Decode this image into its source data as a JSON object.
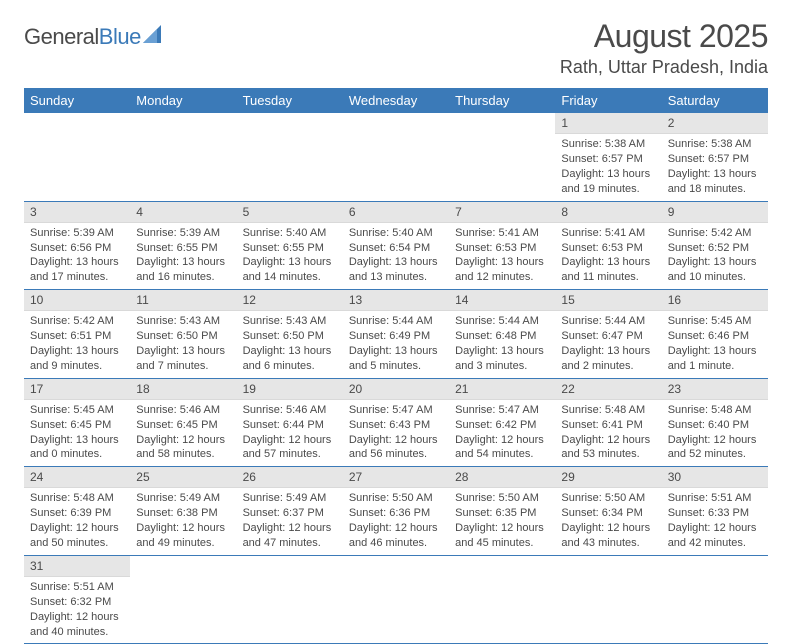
{
  "logo": {
    "text1": "General",
    "text2": "Blue"
  },
  "header": {
    "title": "August 2025",
    "subtitle": "Rath, Uttar Pradesh, India"
  },
  "colors": {
    "accent": "#3b7ab8",
    "dayheader_bg": "#e6e6e6",
    "text": "#4a4a4a",
    "white": "#ffffff"
  },
  "calendar": {
    "daynames": [
      "Sunday",
      "Monday",
      "Tuesday",
      "Wednesday",
      "Thursday",
      "Friday",
      "Saturday"
    ],
    "weeks": [
      [
        null,
        null,
        null,
        null,
        null,
        {
          "n": "1",
          "sunrise": "Sunrise: 5:38 AM",
          "sunset": "Sunset: 6:57 PM",
          "daylight": "Daylight: 13 hours and 19 minutes."
        },
        {
          "n": "2",
          "sunrise": "Sunrise: 5:38 AM",
          "sunset": "Sunset: 6:57 PM",
          "daylight": "Daylight: 13 hours and 18 minutes."
        }
      ],
      [
        {
          "n": "3",
          "sunrise": "Sunrise: 5:39 AM",
          "sunset": "Sunset: 6:56 PM",
          "daylight": "Daylight: 13 hours and 17 minutes."
        },
        {
          "n": "4",
          "sunrise": "Sunrise: 5:39 AM",
          "sunset": "Sunset: 6:55 PM",
          "daylight": "Daylight: 13 hours and 16 minutes."
        },
        {
          "n": "5",
          "sunrise": "Sunrise: 5:40 AM",
          "sunset": "Sunset: 6:55 PM",
          "daylight": "Daylight: 13 hours and 14 minutes."
        },
        {
          "n": "6",
          "sunrise": "Sunrise: 5:40 AM",
          "sunset": "Sunset: 6:54 PM",
          "daylight": "Daylight: 13 hours and 13 minutes."
        },
        {
          "n": "7",
          "sunrise": "Sunrise: 5:41 AM",
          "sunset": "Sunset: 6:53 PM",
          "daylight": "Daylight: 13 hours and 12 minutes."
        },
        {
          "n": "8",
          "sunrise": "Sunrise: 5:41 AM",
          "sunset": "Sunset: 6:53 PM",
          "daylight": "Daylight: 13 hours and 11 minutes."
        },
        {
          "n": "9",
          "sunrise": "Sunrise: 5:42 AM",
          "sunset": "Sunset: 6:52 PM",
          "daylight": "Daylight: 13 hours and 10 minutes."
        }
      ],
      [
        {
          "n": "10",
          "sunrise": "Sunrise: 5:42 AM",
          "sunset": "Sunset: 6:51 PM",
          "daylight": "Daylight: 13 hours and 9 minutes."
        },
        {
          "n": "11",
          "sunrise": "Sunrise: 5:43 AM",
          "sunset": "Sunset: 6:50 PM",
          "daylight": "Daylight: 13 hours and 7 minutes."
        },
        {
          "n": "12",
          "sunrise": "Sunrise: 5:43 AM",
          "sunset": "Sunset: 6:50 PM",
          "daylight": "Daylight: 13 hours and 6 minutes."
        },
        {
          "n": "13",
          "sunrise": "Sunrise: 5:44 AM",
          "sunset": "Sunset: 6:49 PM",
          "daylight": "Daylight: 13 hours and 5 minutes."
        },
        {
          "n": "14",
          "sunrise": "Sunrise: 5:44 AM",
          "sunset": "Sunset: 6:48 PM",
          "daylight": "Daylight: 13 hours and 3 minutes."
        },
        {
          "n": "15",
          "sunrise": "Sunrise: 5:44 AM",
          "sunset": "Sunset: 6:47 PM",
          "daylight": "Daylight: 13 hours and 2 minutes."
        },
        {
          "n": "16",
          "sunrise": "Sunrise: 5:45 AM",
          "sunset": "Sunset: 6:46 PM",
          "daylight": "Daylight: 13 hours and 1 minute."
        }
      ],
      [
        {
          "n": "17",
          "sunrise": "Sunrise: 5:45 AM",
          "sunset": "Sunset: 6:45 PM",
          "daylight": "Daylight: 13 hours and 0 minutes."
        },
        {
          "n": "18",
          "sunrise": "Sunrise: 5:46 AM",
          "sunset": "Sunset: 6:45 PM",
          "daylight": "Daylight: 12 hours and 58 minutes."
        },
        {
          "n": "19",
          "sunrise": "Sunrise: 5:46 AM",
          "sunset": "Sunset: 6:44 PM",
          "daylight": "Daylight: 12 hours and 57 minutes."
        },
        {
          "n": "20",
          "sunrise": "Sunrise: 5:47 AM",
          "sunset": "Sunset: 6:43 PM",
          "daylight": "Daylight: 12 hours and 56 minutes."
        },
        {
          "n": "21",
          "sunrise": "Sunrise: 5:47 AM",
          "sunset": "Sunset: 6:42 PM",
          "daylight": "Daylight: 12 hours and 54 minutes."
        },
        {
          "n": "22",
          "sunrise": "Sunrise: 5:48 AM",
          "sunset": "Sunset: 6:41 PM",
          "daylight": "Daylight: 12 hours and 53 minutes."
        },
        {
          "n": "23",
          "sunrise": "Sunrise: 5:48 AM",
          "sunset": "Sunset: 6:40 PM",
          "daylight": "Daylight: 12 hours and 52 minutes."
        }
      ],
      [
        {
          "n": "24",
          "sunrise": "Sunrise: 5:48 AM",
          "sunset": "Sunset: 6:39 PM",
          "daylight": "Daylight: 12 hours and 50 minutes."
        },
        {
          "n": "25",
          "sunrise": "Sunrise: 5:49 AM",
          "sunset": "Sunset: 6:38 PM",
          "daylight": "Daylight: 12 hours and 49 minutes."
        },
        {
          "n": "26",
          "sunrise": "Sunrise: 5:49 AM",
          "sunset": "Sunset: 6:37 PM",
          "daylight": "Daylight: 12 hours and 47 minutes."
        },
        {
          "n": "27",
          "sunrise": "Sunrise: 5:50 AM",
          "sunset": "Sunset: 6:36 PM",
          "daylight": "Daylight: 12 hours and 46 minutes."
        },
        {
          "n": "28",
          "sunrise": "Sunrise: 5:50 AM",
          "sunset": "Sunset: 6:35 PM",
          "daylight": "Daylight: 12 hours and 45 minutes."
        },
        {
          "n": "29",
          "sunrise": "Sunrise: 5:50 AM",
          "sunset": "Sunset: 6:34 PM",
          "daylight": "Daylight: 12 hours and 43 minutes."
        },
        {
          "n": "30",
          "sunrise": "Sunrise: 5:51 AM",
          "sunset": "Sunset: 6:33 PM",
          "daylight": "Daylight: 12 hours and 42 minutes."
        }
      ],
      [
        {
          "n": "31",
          "sunrise": "Sunrise: 5:51 AM",
          "sunset": "Sunset: 6:32 PM",
          "daylight": "Daylight: 12 hours and 40 minutes."
        },
        null,
        null,
        null,
        null,
        null,
        null
      ]
    ]
  }
}
